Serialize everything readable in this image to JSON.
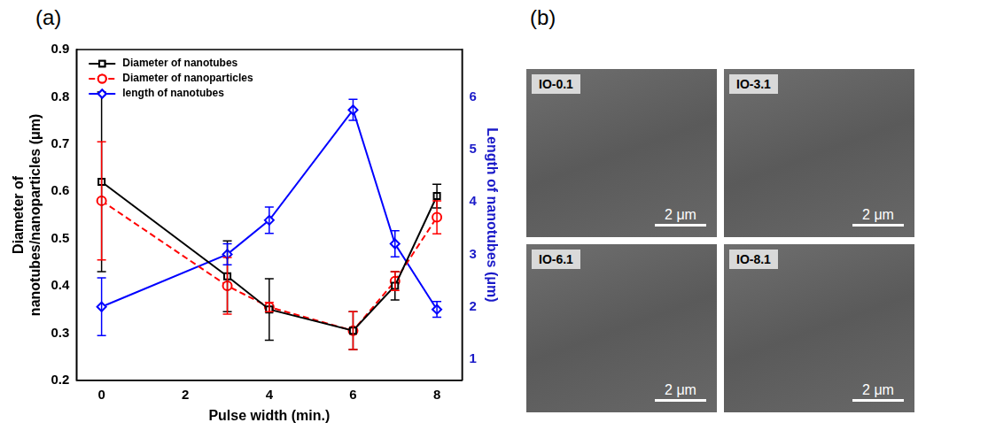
{
  "panel_labels": [
    "(a)",
    "(b)"
  ],
  "chart_data": {
    "type": "line",
    "x_label": "Pulse width (min.)",
    "y_label": [
      "Diameter of",
      "nanotubes/nanoparticles (μm)"
    ],
    "y2_label": "Length of nanotubes (μm)",
    "x": [
      0,
      3,
      4,
      6,
      7,
      8
    ],
    "xlim": [
      -0.6,
      8.6
    ],
    "xticks": [
      0,
      2,
      4,
      6,
      8
    ],
    "ylim": [
      0.2,
      0.9
    ],
    "yticks": [
      0.2,
      0.3,
      0.4,
      0.5,
      0.6,
      0.7,
      0.8,
      0.9
    ],
    "y2lim": [
      0.6,
      6.9
    ],
    "y2ticks": [
      1,
      2,
      3,
      4,
      5,
      6
    ],
    "grid": false,
    "legend": "upper left",
    "series": [
      {
        "name": "Diameter of nanotubes",
        "color": "#000000",
        "marker": "square",
        "line_style": "solid",
        "values": [
          0.62,
          0.42,
          0.35,
          0.305,
          0.4,
          0.59
        ],
        "errors": [
          0.19,
          0.075,
          0.065,
          0.04,
          0.03,
          0.025
        ]
      },
      {
        "name": "Diameter of nanoparticles",
        "color": "#ff0000",
        "marker": "circle",
        "line_style": "dashed",
        "values": [
          0.58,
          0.4,
          0.355,
          0.305,
          0.41,
          0.545
        ],
        "errors": [
          0.125,
          0.06,
          0.01,
          0.04,
          0.02,
          0.035
        ]
      },
      {
        "name": "length of nanotubes",
        "color": "#0000ff",
        "marker": "diamond",
        "line_style": "solid",
        "axis": "y2",
        "values": [
          2.0,
          3.0,
          3.65,
          5.75,
          3.2,
          1.95
        ],
        "errors": [
          0.55,
          0.2,
          0.25,
          0.2,
          0.25,
          0.15
        ]
      }
    ]
  },
  "images": [
    {
      "label": "IO-0.1",
      "scale_bar": "2 μm"
    },
    {
      "label": "IO-3.1",
      "scale_bar": "2 μm"
    },
    {
      "label": "IO-6.1",
      "scale_bar": "2 μm"
    },
    {
      "label": "IO-8.1",
      "scale_bar": "2 μm"
    }
  ]
}
